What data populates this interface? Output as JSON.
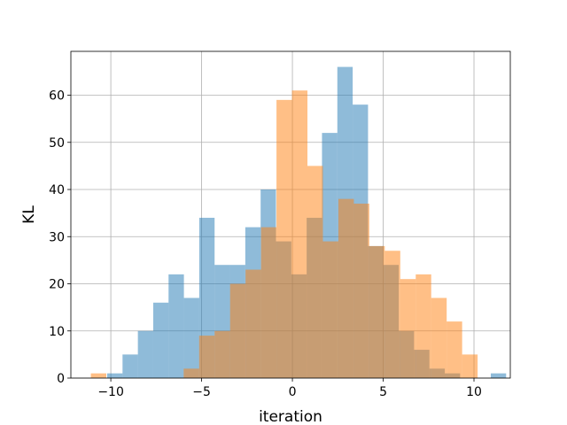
{
  "chart_data": {
    "type": "histogram",
    "title": "",
    "xlabel": "iteration",
    "ylabel": "KL",
    "xlim": [
      -12.2,
      12.0
    ],
    "ylim": [
      0,
      69.3
    ],
    "xticks": [
      -10,
      -5,
      0,
      5,
      10
    ],
    "xtick_labels": [
      "−10",
      "−5",
      "0",
      "5",
      "10"
    ],
    "yticks": [
      0,
      10,
      20,
      30,
      40,
      50,
      60
    ],
    "grid": true,
    "legend": "none",
    "series": [
      {
        "color": "#1f77b4",
        "opacity": 0.5,
        "bin_start": -10.2,
        "bin_width": 0.845,
        "values": [
          1,
          5,
          10,
          16,
          22,
          17,
          34,
          24,
          24,
          32,
          40,
          29,
          22,
          34,
          52,
          66,
          58,
          28,
          24,
          10,
          6,
          2,
          1,
          0,
          0,
          1
        ]
      },
      {
        "color": "#ff7f0e",
        "opacity": 0.5,
        "bin_start": -11.1,
        "bin_width": 0.852,
        "values": [
          1,
          0,
          0,
          0,
          0,
          0,
          2,
          9,
          10,
          20,
          23,
          32,
          59,
          61,
          45,
          29,
          38,
          37,
          28,
          27,
          21,
          22,
          17,
          12,
          5
        ]
      }
    ]
  }
}
